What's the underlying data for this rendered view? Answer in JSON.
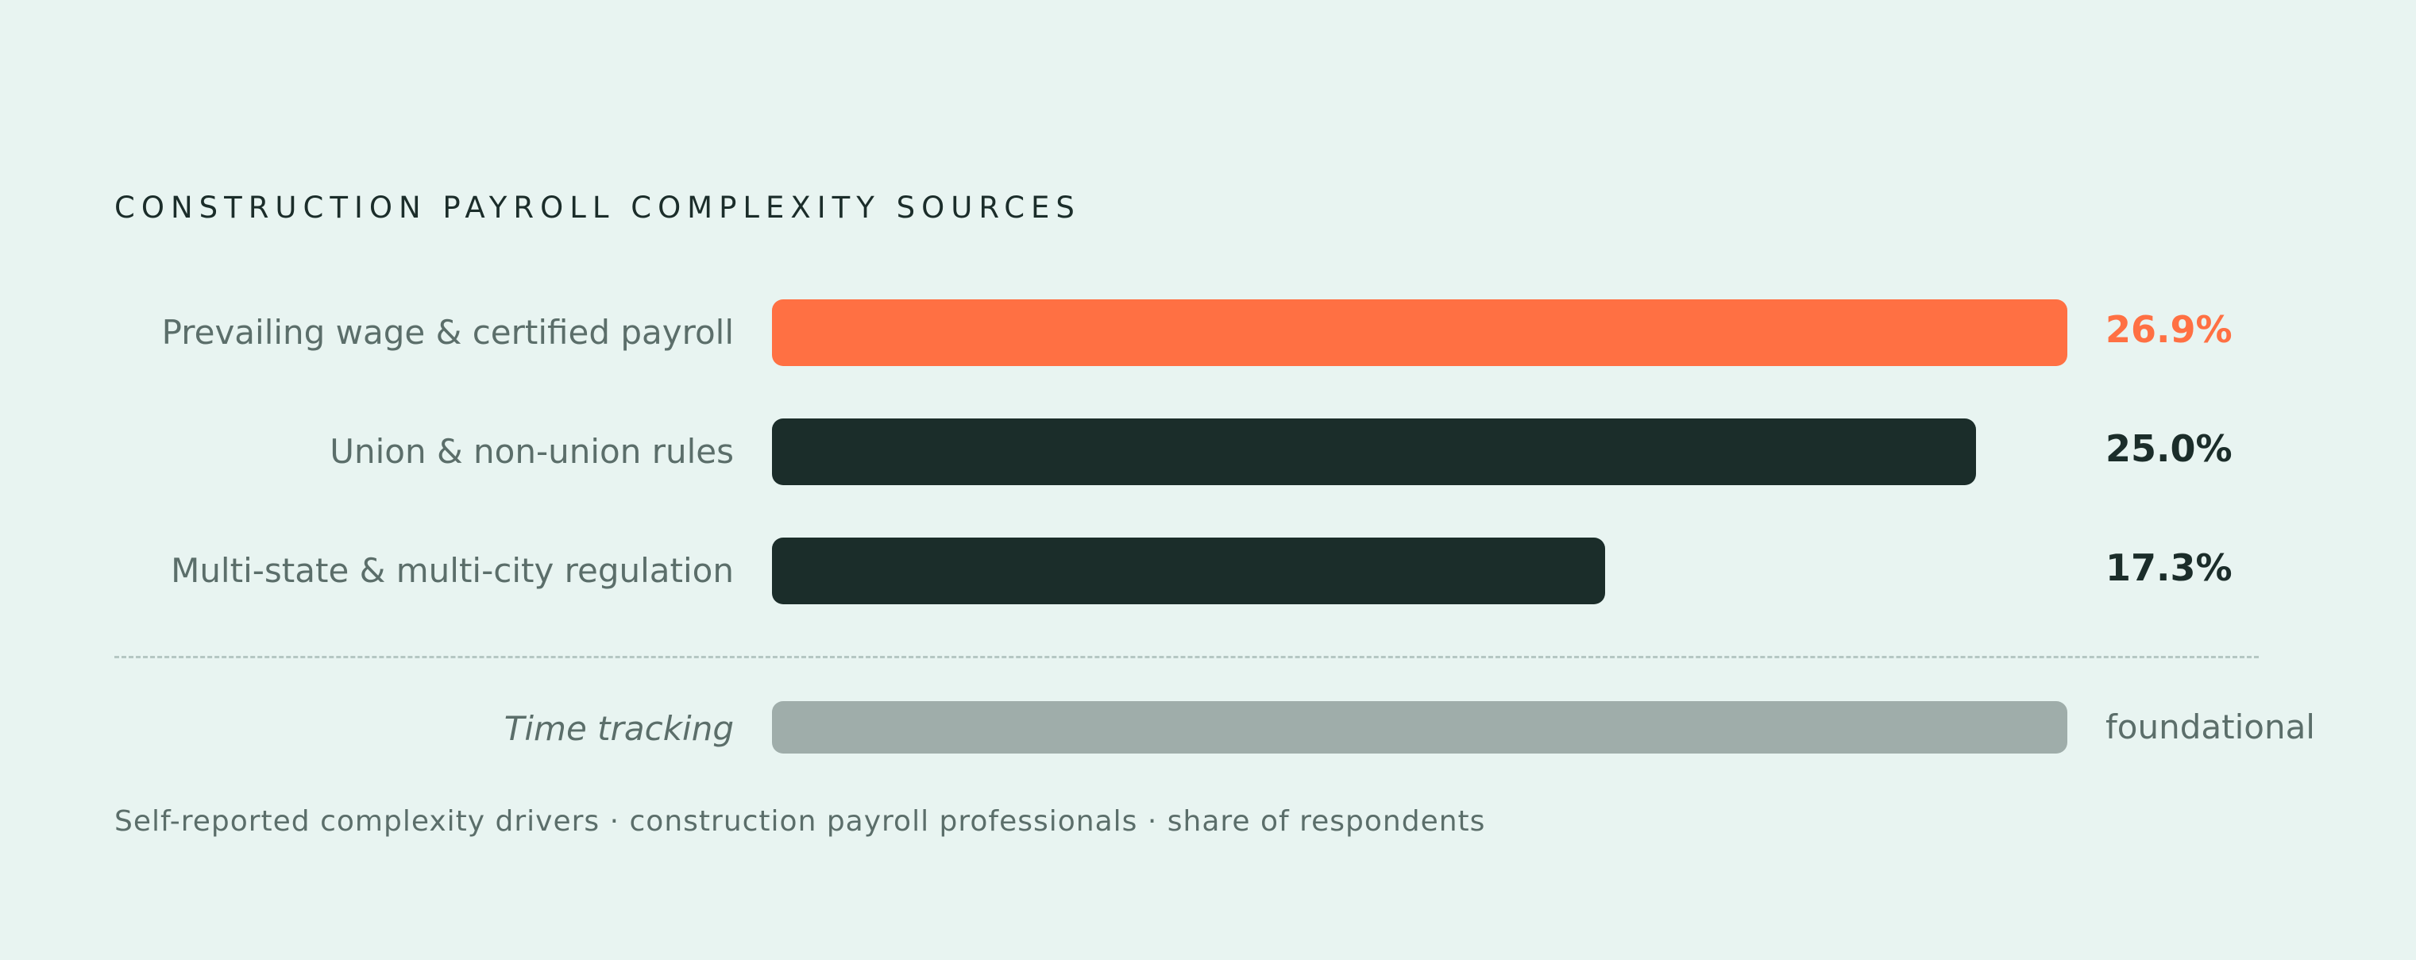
{
  "chart_data": {
    "type": "bar",
    "orientation": "horizontal",
    "title": "CONSTRUCTION PAYROLL COMPLEXITY SOURCES",
    "categories": [
      "Prevailing wage & certified payroll",
      "Union & non-union rules",
      "Multi-state & multi-city regulation"
    ],
    "values": [
      26.9,
      25.0,
      17.3
    ],
    "value_labels": [
      "26.9%",
      "25.0%",
      "17.3%"
    ],
    "xlim": [
      0,
      26.9
    ],
    "grid": false,
    "legend": "none",
    "highlight_index": 0,
    "colors": {
      "highlight": "#ff7043",
      "default": "#1b2d2a",
      "baseline": "#9fadaa",
      "label": "#5b6e6a",
      "background": "#e8f4f1"
    },
    "baseline": {
      "label": "Time tracking",
      "value_label": "foundational",
      "value": 26.9
    },
    "caption": "Self-reported complexity drivers · construction payroll professionals · share of respondents"
  }
}
